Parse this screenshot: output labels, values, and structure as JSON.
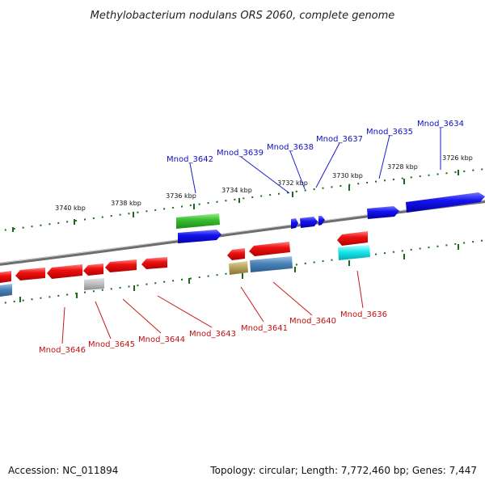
{
  "title": "Methylobacterium nodulans ORS 2060, complete genome",
  "footer": {
    "accession": "Accession: NC_011894",
    "topology": "Topology: circular; Length: 7,772,460 bp; Genes: 7,447"
  },
  "colors": {
    "backbone": "#7a7a7a",
    "forward_gene": "#1a1aee",
    "reverse_gene": "#ee1a1a",
    "top_label": "#1010c0",
    "bottom_label": "#c01010",
    "tick": "#1a6a1a"
  },
  "kbp_labels": [
    "3740 kbp",
    "3738 kbp",
    "3736 kbp",
    "3734 kbp",
    "3732 kbp",
    "3730 kbp",
    "3728 kbp",
    "3726 kbp"
  ],
  "top_gene_labels": [
    "Mnod_3642",
    "Mnod_3639",
    "Mnod_3638",
    "Mnod_3637",
    "Mnod_3635",
    "Mnod_3634"
  ],
  "bottom_gene_labels": [
    "Mnod_3646",
    "Mnod_3645",
    "Mnod_3644",
    "Mnod_3643",
    "Mnod_3641",
    "Mnod_3640",
    "Mnod_3636"
  ]
}
